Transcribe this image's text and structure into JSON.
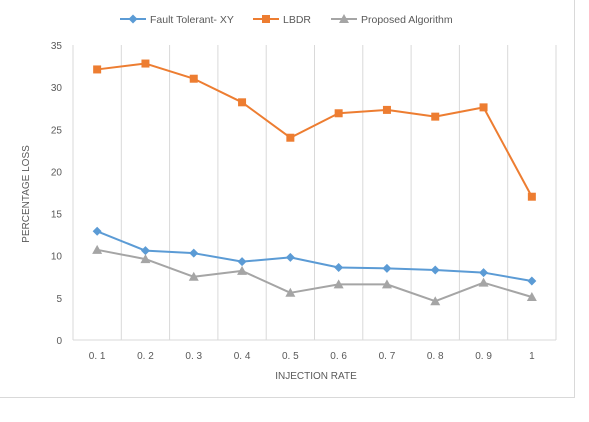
{
  "chart_data": {
    "type": "line",
    "title": "",
    "xlabel": "INJECTION RATE",
    "ylabel": "PERCENTAGE LOSS",
    "categories": [
      "0. 1",
      "0. 2",
      "0. 3",
      "0. 4",
      "0. 5",
      "0. 6",
      "0. 7",
      "0. 8",
      "0. 9",
      "1"
    ],
    "ylim": [
      0,
      35
    ],
    "yticks": [
      "0",
      "5",
      "10",
      "15",
      "20",
      "25",
      "30",
      "35"
    ],
    "grid": "vertical",
    "legend": "top",
    "series": [
      {
        "name": "Fault Tolerant- XY",
        "color": "#5b9bd5",
        "marker": "diamond",
        "values": [
          12.9,
          10.6,
          10.3,
          9.3,
          9.8,
          8.6,
          8.5,
          8.3,
          8.0,
          7.0
        ]
      },
      {
        "name": "LBDR",
        "color": "#ed7d31",
        "marker": "square",
        "values": [
          32.1,
          32.8,
          31.0,
          28.2,
          24.0,
          26.9,
          27.3,
          26.5,
          27.6,
          17.0
        ]
      },
      {
        "name": "Proposed Algorithm",
        "color": "#a5a5a5",
        "marker": "triangle",
        "values": [
          10.7,
          9.6,
          7.5,
          8.2,
          5.6,
          6.6,
          6.6,
          4.6,
          6.8,
          5.1
        ]
      }
    ]
  }
}
